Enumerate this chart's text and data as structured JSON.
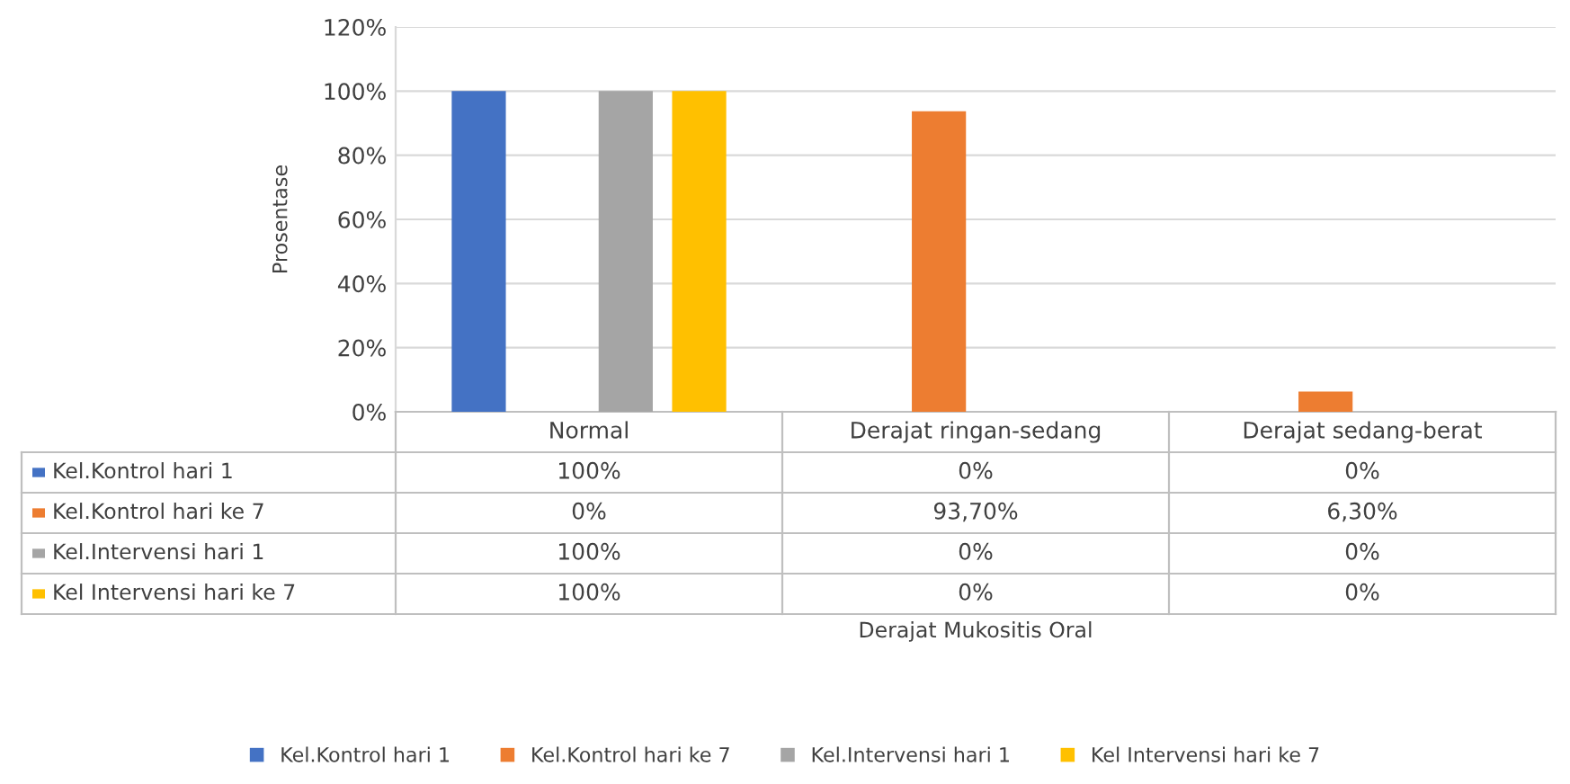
{
  "chart_data": {
    "type": "bar",
    "annotations": [
      "Derajat Mukositis Oral"
    ],
    "ylabel": "Prosentase",
    "categories": [
      "Normal",
      "Derajat ringan-sedang",
      "Derajat sedang-berat"
    ],
    "series": [
      {
        "name": "Kel.Kontrol hari 1",
        "color": "#4472c4",
        "values": [
          100,
          0,
          0
        ],
        "value_labels": [
          "100%",
          "0%",
          "0%"
        ]
      },
      {
        "name": "Kel.Kontrol hari ke 7",
        "color": "#ed7d31",
        "values": [
          0,
          93.7,
          6.3
        ],
        "value_labels": [
          "0%",
          "93,70%",
          "6,30%"
        ]
      },
      {
        "name": "Kel.Intervensi hari 1",
        "color": "#a5a5a5",
        "values": [
          100,
          0,
          0
        ],
        "value_labels": [
          "100%",
          "0%",
          "0%"
        ]
      },
      {
        "name": "Kel Intervensi hari ke 7",
        "color": "#ffc000",
        "values": [
          100,
          0,
          0
        ],
        "value_labels": [
          "100%",
          "0%",
          "0%"
        ]
      }
    ],
    "ylim": [
      0,
      120
    ],
    "yticks": [
      {
        "value": 0,
        "label": "0%"
      },
      {
        "value": 20,
        "label": "20%"
      },
      {
        "value": 40,
        "label": "40%"
      },
      {
        "value": 60,
        "label": "60%"
      },
      {
        "value": 80,
        "label": "80%"
      },
      {
        "value": 100,
        "label": "100%"
      },
      {
        "value": 120,
        "label": "120%"
      }
    ],
    "grid": "y",
    "legend": "bottom"
  }
}
